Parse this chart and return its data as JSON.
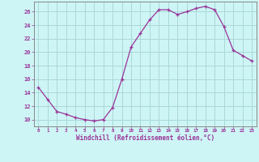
{
  "x": [
    0,
    1,
    2,
    3,
    4,
    5,
    6,
    7,
    8,
    9,
    10,
    11,
    12,
    13,
    14,
    15,
    16,
    17,
    18,
    19,
    20,
    21,
    22,
    23
  ],
  "y": [
    14.8,
    13.0,
    11.2,
    10.8,
    10.3,
    10.0,
    9.8,
    10.0,
    11.8,
    16.0,
    20.8,
    22.8,
    24.8,
    26.3,
    26.3,
    25.6,
    26.0,
    26.5,
    26.8,
    26.3,
    23.8,
    20.3,
    19.5,
    18.7
  ],
  "line_color": "#993399",
  "marker": "+",
  "bg_color": "#cef5f5",
  "grid_color": "#aad8d8",
  "tick_color": "#993399",
  "xlabel": "Windchill (Refroidissement éolien,°C)",
  "xlabel_color": "#993399",
  "ylabel_ticks": [
    10,
    12,
    14,
    16,
    18,
    20,
    22,
    24,
    26
  ],
  "xtick_labels": [
    "0",
    "1",
    "2",
    "3",
    "4",
    "5",
    "6",
    "7",
    "8",
    "9",
    "10",
    "11",
    "12",
    "13",
    "14",
    "15",
    "16",
    "17",
    "18",
    "19",
    "20",
    "21",
    "22",
    "23"
  ],
  "xlim": [
    -0.5,
    23.5
  ],
  "ylim": [
    9.0,
    27.5
  ]
}
